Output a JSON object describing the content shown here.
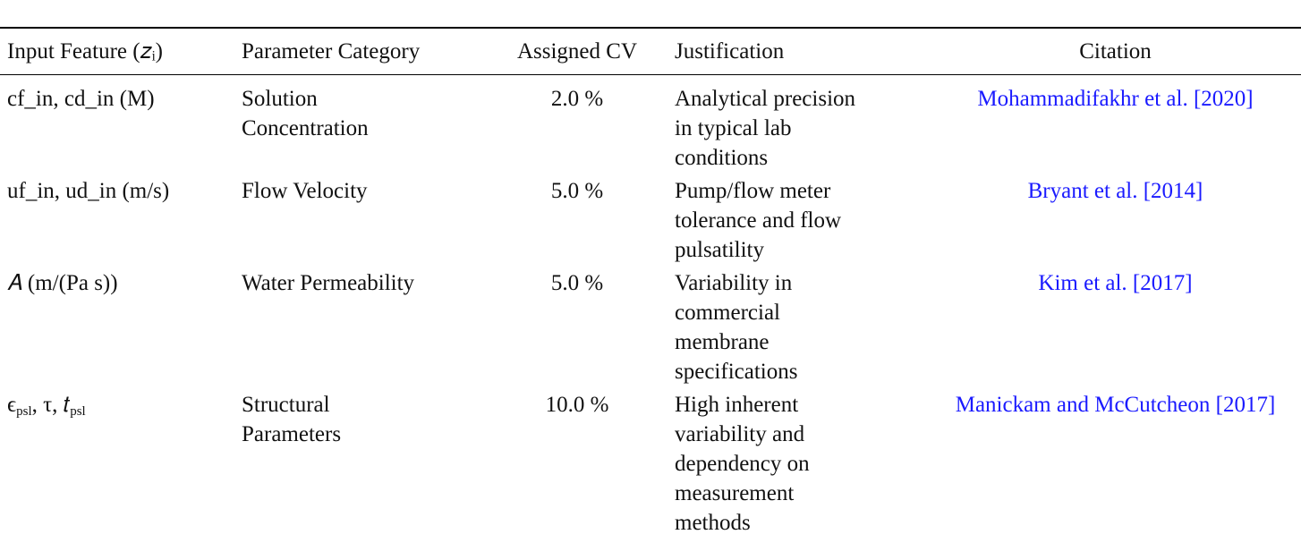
{
  "table": {
    "columns": [
      "Input Feature (𝑧ᵢ)",
      "Parameter Category",
      "Assigned CV",
      "Justification",
      "Citation"
    ],
    "rows": [
      {
        "feature": [
          {
            "main": "cf_in, cd_in (M)"
          }
        ],
        "category": [
          "Solution",
          "Concentration"
        ],
        "cv": "2.0 %",
        "justification": [
          "Analytical precision",
          "in typical lab",
          "conditions"
        ],
        "citation": "Mohammadifakhr et al. [2020]"
      },
      {
        "feature": [
          {
            "main": "uf_in, ud_in (m/s)"
          }
        ],
        "category": [
          "Flow Velocity"
        ],
        "cv": "5.0 %",
        "justification": [
          "Pump/flow meter",
          "tolerance and flow",
          "pulsatility"
        ],
        "citation": "Bryant et al. [2014]"
      },
      {
        "feature": [
          {
            "main": "𝐴 (m/(Pa s))"
          }
        ],
        "category": [
          "Water Permeability"
        ],
        "cv": "5.0 %",
        "justification": [
          "Variability in",
          "commercial",
          "membrane",
          "specifications"
        ],
        "citation": "Kim et al. [2017]"
      },
      {
        "feature": [
          {
            "main": "ϵ",
            "sub": "psl"
          },
          {
            "main": ", τ, 𝑡",
            "sub": "psl"
          }
        ],
        "category": [
          "Structural",
          "Parameters"
        ],
        "cv": "10.0 %",
        "justification": [
          "High inherent",
          "variability and",
          "dependency on",
          "measurement",
          "methods"
        ],
        "citation": "Manickam and McCutcheon [2017]"
      }
    ]
  }
}
